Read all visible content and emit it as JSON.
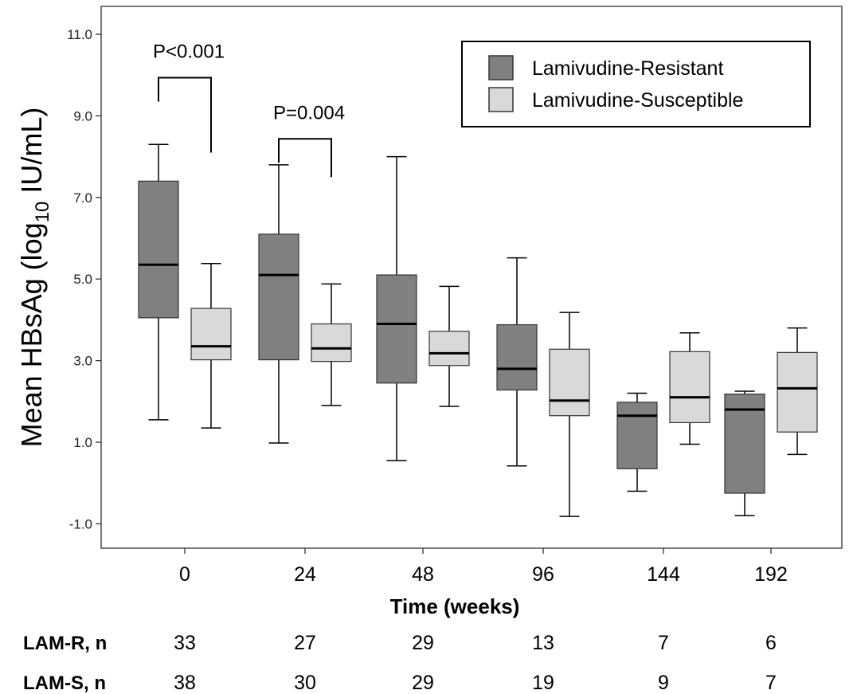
{
  "chart_data": {
    "type": "boxplot",
    "ylabel": {
      "prefix": "Mean HBsAg (log",
      "sub": "10",
      "suffix": " IU/mL)"
    },
    "xlabel": "Time (weeks)",
    "categories": [
      "0",
      "24",
      "48",
      "96",
      "144",
      "192"
    ],
    "ylim": [
      -1.6,
      11.6
    ],
    "yticks": [
      11.0,
      9.0,
      7.0,
      5.0,
      3.0,
      1.0,
      -1.0
    ],
    "ytick_labels": [
      "11.0",
      "9.0",
      "7.0",
      "5.0",
      "3.0",
      "1.0",
      "-1.0"
    ],
    "grid": false,
    "legend_position": "top-right",
    "series": [
      {
        "name": "Lamivudine-Resistant",
        "color": "#808080",
        "boxes": [
          {
            "min": 1.55,
            "q1": 4.05,
            "median": 5.35,
            "q3": 7.4,
            "max": 8.3
          },
          {
            "min": 0.98,
            "q1": 3.02,
            "median": 5.1,
            "q3": 6.1,
            "max": 7.8
          },
          {
            "min": 0.55,
            "q1": 2.45,
            "median": 3.9,
            "q3": 5.1,
            "max": 8.0
          },
          {
            "min": 0.42,
            "q1": 2.28,
            "median": 2.8,
            "q3": 3.88,
            "max": 5.52
          },
          {
            "min": -0.2,
            "q1": 0.35,
            "median": 1.65,
            "q3": 1.98,
            "max": 2.2
          },
          {
            "min": -0.8,
            "q1": -0.25,
            "median": 1.8,
            "q3": 2.18,
            "max": 2.25
          }
        ]
      },
      {
        "name": "Lamivudine-Susceptible",
        "color": "#d9d9d9",
        "boxes": [
          {
            "min": 1.35,
            "q1": 3.02,
            "median": 3.35,
            "q3": 4.28,
            "max": 5.38
          },
          {
            "min": 1.9,
            "q1": 2.98,
            "median": 3.3,
            "q3": 3.9,
            "max": 4.88
          },
          {
            "min": 1.88,
            "q1": 2.88,
            "median": 3.18,
            "q3": 3.72,
            "max": 4.82
          },
          {
            "min": -0.82,
            "q1": 1.65,
            "median": 2.02,
            "q3": 3.28,
            "max": 4.18
          },
          {
            "min": 0.95,
            "q1": 1.48,
            "median": 2.1,
            "q3": 3.22,
            "max": 3.68
          },
          {
            "min": 0.7,
            "q1": 1.25,
            "median": 2.32,
            "q3": 3.2,
            "max": 3.8
          }
        ]
      }
    ],
    "annotations": [
      {
        "text": "P<0.001",
        "category": "0",
        "left_y": 9.35,
        "right_y": 8.1
      },
      {
        "text": "P=0.004",
        "category": "24",
        "left_y": 7.85,
        "right_y": 7.5
      }
    ],
    "counts_table": [
      {
        "label": "LAM-R, n",
        "values": [
          "33",
          "27",
          "29",
          "13",
          "7",
          "6"
        ]
      },
      {
        "label": "LAM-S, n",
        "values": [
          "38",
          "30",
          "29",
          "19",
          "9",
          "7"
        ]
      }
    ]
  }
}
